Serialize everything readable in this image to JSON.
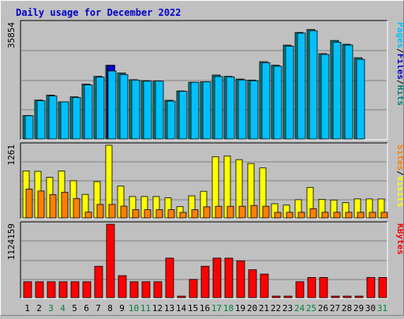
{
  "chart_data": {
    "type": "bar",
    "title": "Daily usage for December 2022",
    "categories": [
      "1",
      "2",
      "3",
      "4",
      "5",
      "6",
      "7",
      "8",
      "9",
      "10",
      "11",
      "12",
      "13",
      "14",
      "15",
      "16",
      "17",
      "18",
      "19",
      "20",
      "21",
      "22",
      "23",
      "24",
      "25",
      "26",
      "27",
      "28",
      "29",
      "30",
      "31"
    ],
    "weekend_days": [
      "3",
      "4",
      "10",
      "11",
      "17",
      "18",
      "24",
      "25",
      "31"
    ],
    "colors": {
      "background": "#c0c0c0",
      "plot": "#c0c0c0",
      "title": "#0000cc",
      "pages": "#00c0ff",
      "files": "#0000cc",
      "hits": "#008080",
      "visits": "#ffff00",
      "sites": "#ff8000",
      "kbytes": "#ff0000",
      "weekday_label": "#000000",
      "weekend_label": "#008040"
    },
    "panels": [
      {
        "id": "hits-files-pages",
        "ymax_label": "35854",
        "ymax": 35854,
        "legend": [
          {
            "text": "Pages",
            "color": "#00c0ff"
          },
          {
            "text": "/",
            "color": "#000000"
          },
          {
            "text": "Files",
            "color": "#0000cc"
          },
          {
            "text": "/",
            "color": "#000000"
          },
          {
            "text": "Hits",
            "color": "#008080"
          }
        ],
        "series": [
          {
            "name": "Hits",
            "color": "#008080",
            "values": [
              7240,
              12030,
              13550,
              11470,
              13020,
              16970,
              19350,
              22760,
              20390,
              18320,
              18000,
              17890,
              11950,
              14820,
              17520,
              17640,
              19750,
              19340,
              18510,
              18190,
              23890,
              22790,
              28990,
              32910,
              33840,
              26370,
              30450,
              29280,
              25100,
              null,
              null
            ]
          },
          {
            "name": "Files",
            "color": "#0000cc",
            "values": [
              null,
              null,
              null,
              null,
              null,
              null,
              null,
              22760,
              null,
              null,
              null,
              null,
              null,
              null,
              null,
              null,
              null,
              null,
              null,
              null,
              null,
              null,
              null,
              null,
              null,
              null,
              null,
              null,
              null,
              null,
              null
            ]
          },
          {
            "name": "Pages",
            "color": "#00c0ff",
            "values": [
              7180,
              11800,
              13260,
              11470,
              12830,
              16700,
              19100,
              20990,
              19850,
              18190,
              17880,
              17890,
              11710,
              14720,
              17520,
              17640,
              19300,
              19200,
              18250,
              17990,
              23550,
              22460,
              28640,
              32710,
              33430,
              26110,
              29880,
              28990,
              24580,
              null,
              null
            ]
          }
        ]
      },
      {
        "id": "visits-sites",
        "ymax_label": "1261",
        "ymax": 1261,
        "legend": [
          {
            "text": "Sites",
            "color": "#ff8000"
          },
          {
            "text": "/",
            "color": "#000000"
          },
          {
            "text": "Visits",
            "color": "#ffff00"
          }
        ],
        "series": [
          {
            "name": "Visits",
            "color": "#ffff00",
            "values": [
              817,
              808,
              705,
              814,
              645,
              408,
              630,
              1261,
              553,
              372,
              372,
              372,
              349,
              196,
              384,
              463,
              1064,
              1073,
              1012,
              945,
              868,
              247,
              223,
              317,
              530,
              323,
              311,
              265,
              331,
              331,
              329
            ]
          },
          {
            "name": "Sites",
            "color": "#ff8000",
            "values": [
              501,
              468,
              404,
              446,
              336,
              100,
              235,
              235,
              204,
              142,
              142,
              142,
              142,
              96,
              142,
              193,
              203,
              203,
              203,
              217,
              203,
              96,
              97,
              97,
              161,
              97,
              97,
              97,
              97,
              97,
              97
            ]
          }
        ]
      },
      {
        "id": "kbytes",
        "ymax_label": "1124159",
        "ymax": 1124159,
        "legend": [
          {
            "text": "KBytes",
            "color": "#ff0000"
          }
        ],
        "series": [
          {
            "name": "KBytes",
            "color": "#ff0000",
            "values": [
              244000,
              244000,
              244000,
              244000,
              244000,
              244000,
              481000,
              1124159,
              337000,
              244000,
              244000,
              244000,
              605000,
              24000,
              281000,
              481000,
              605000,
              605000,
              564000,
              428000,
              362000,
              24000,
              24000,
              244000,
              310000,
              310000,
              24000,
              24000,
              24000,
              310000,
              310000
            ]
          }
        ]
      }
    ]
  }
}
